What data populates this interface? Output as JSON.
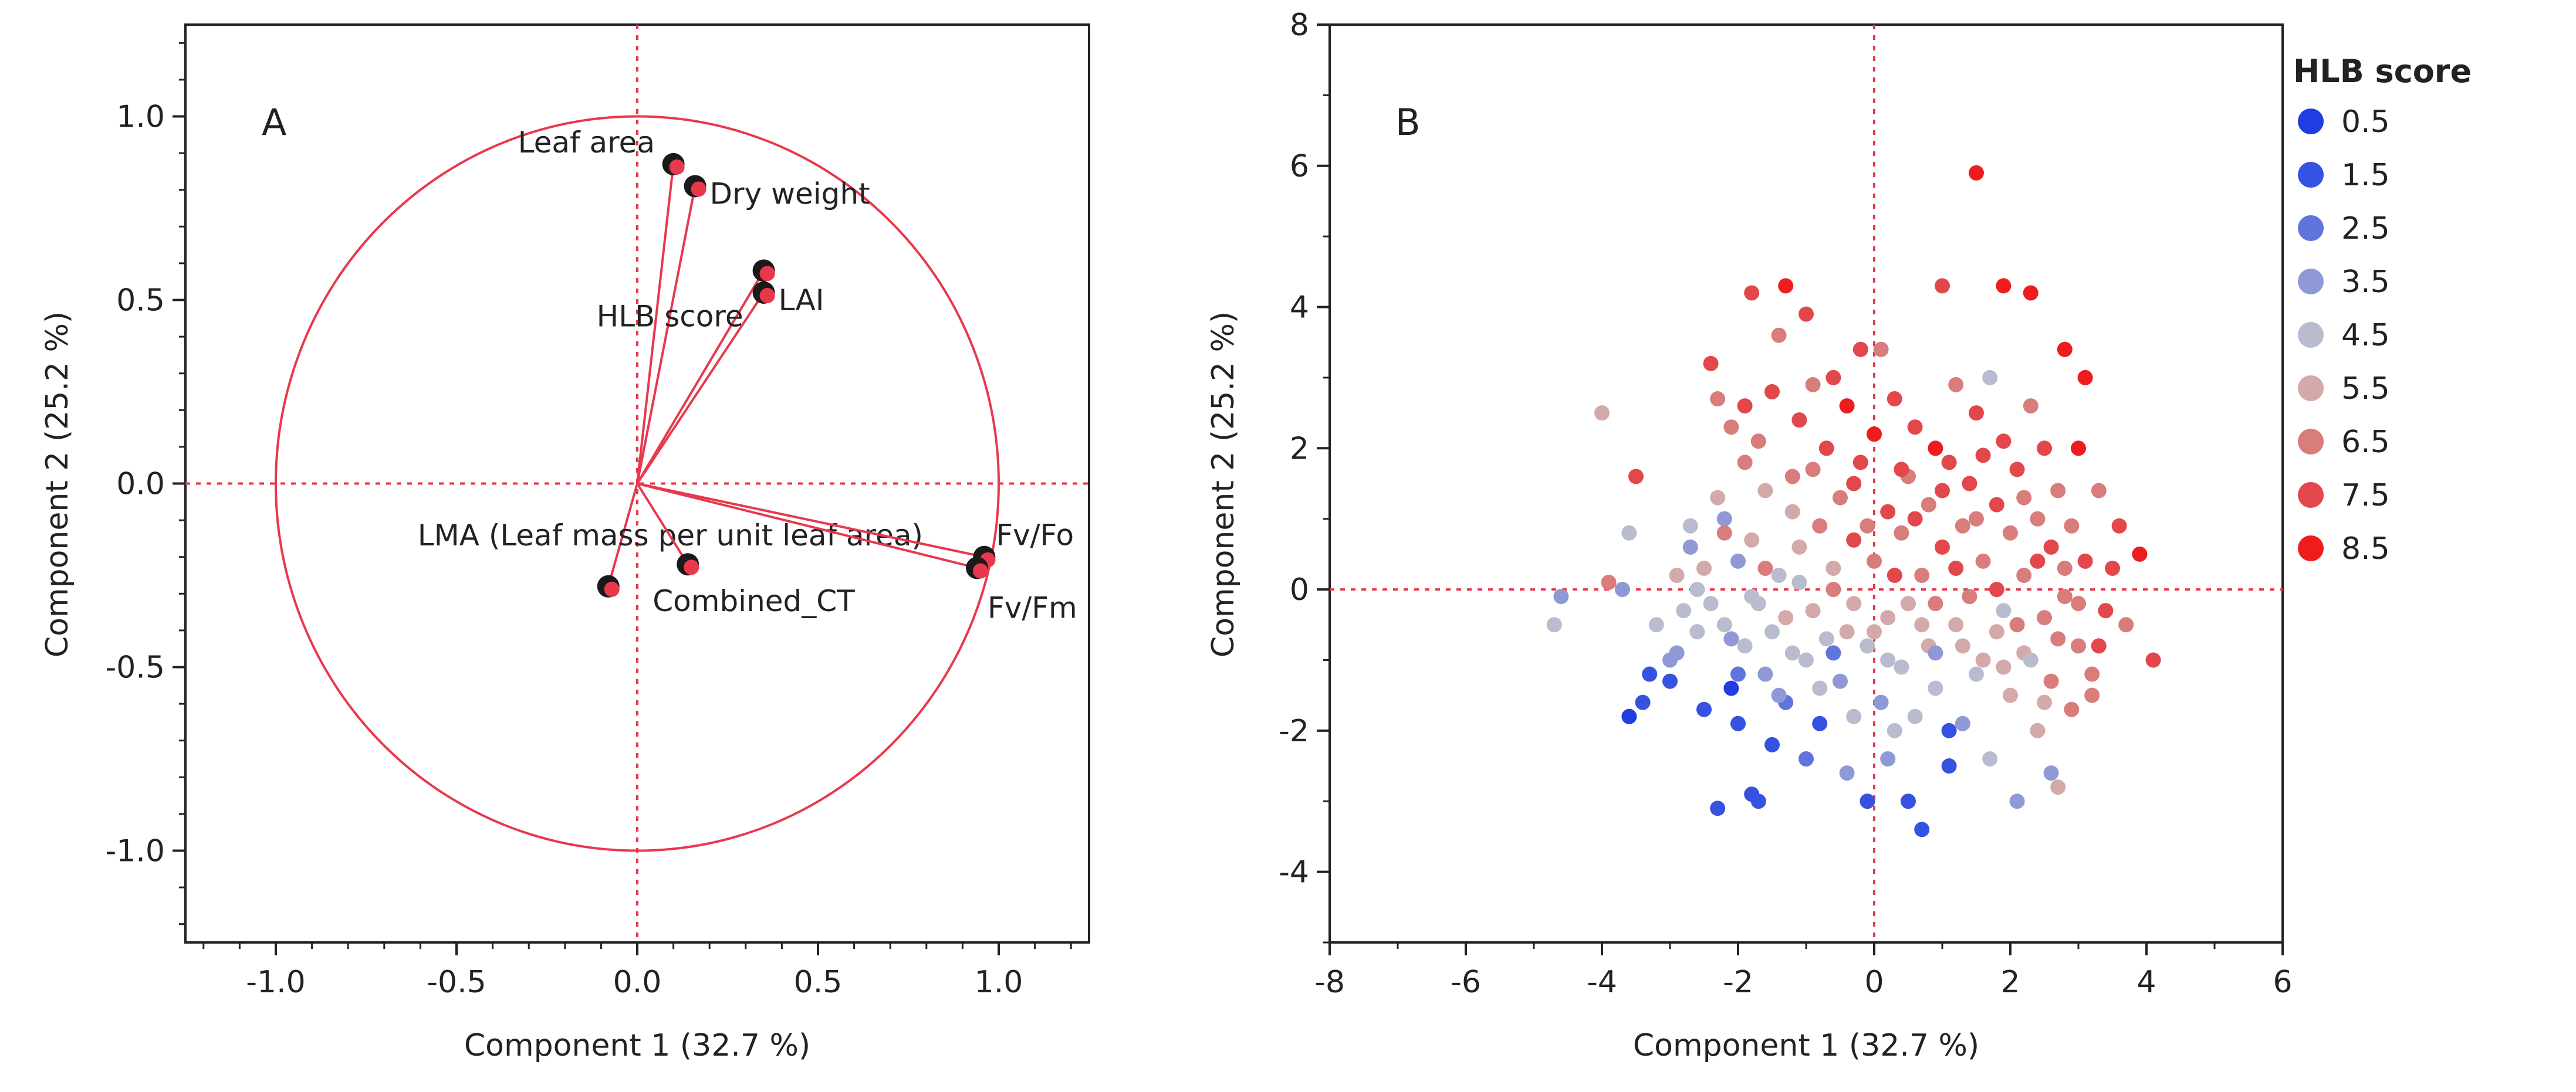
{
  "chart_data": [
    {
      "panel_label": "A",
      "type": "scatter",
      "subtype": "pca-loadings-biplot",
      "xlabel": "Component 1  (32.7 %)",
      "ylabel": "Component 2  (25.2 %)",
      "xlim": [
        -1.25,
        1.25
      ],
      "ylim": [
        -1.25,
        1.25
      ],
      "xticks": [
        -1.0,
        -0.5,
        0.0,
        0.5,
        1.0
      ],
      "xtick_labels": [
        "-1.0",
        "-0.5",
        "0.0",
        "0.5",
        "1.0"
      ],
      "yticks": [
        -1.0,
        -0.5,
        0.0,
        0.5,
        1.0
      ],
      "ytick_labels": [
        "-1.0",
        "-0.5",
        "0.0",
        "0.5",
        "1.0"
      ],
      "unit_circle_radius": 1.0,
      "loadings": [
        {
          "name": "Leaf area",
          "x": 0.1,
          "y": 0.87
        },
        {
          "name": "Dry weight",
          "x": 0.16,
          "y": 0.81
        },
        {
          "name": "HLB score",
          "x": 0.35,
          "y": 0.58
        },
        {
          "name": "LAI",
          "x": 0.35,
          "y": 0.52
        },
        {
          "name": "LMA (Leaf mass per unit leaf area)",
          "x": -0.08,
          "y": -0.28
        },
        {
          "name": "Combined_CT",
          "x": 0.14,
          "y": -0.22
        },
        {
          "name": "Fv/Fo",
          "x": 0.96,
          "y": -0.2
        },
        {
          "name": "Fv/Fm",
          "x": 0.94,
          "y": -0.23
        }
      ]
    },
    {
      "panel_label": "B",
      "type": "scatter",
      "subtype": "pca-scores",
      "xlabel": "Component 1  (32.7 %)",
      "ylabel": "Component 2  (25.2 %)",
      "xlim": [
        -8,
        6
      ],
      "ylim": [
        -5,
        8
      ],
      "xticks": [
        -8,
        -6,
        -4,
        -2,
        0,
        2,
        4,
        6
      ],
      "xtick_labels": [
        "-8",
        "-6",
        "-4",
        "-2",
        "0",
        "2",
        "4",
        "6"
      ],
      "yticks": [
        -4,
        -2,
        0,
        2,
        4,
        6,
        8
      ],
      "ytick_labels": [
        "-4",
        "-2",
        "0",
        "2",
        "4",
        "6",
        "8"
      ],
      "legend_title": "HLB score",
      "legend_position": "right",
      "legend": [
        {
          "label": "0.5",
          "value": 0.5,
          "color": "#1f3de0"
        },
        {
          "label": "1.5",
          "value": 1.5,
          "color": "#3552e0"
        },
        {
          "label": "2.5",
          "value": 2.5,
          "color": "#5f74dc"
        },
        {
          "label": "3.5",
          "value": 3.5,
          "color": "#8f99d6"
        },
        {
          "label": "4.5",
          "value": 4.5,
          "color": "#b9bccf"
        },
        {
          "label": "5.5",
          "value": 5.5,
          "color": "#d4a9a9"
        },
        {
          "label": "6.5",
          "value": 6.5,
          "color": "#d97c7c"
        },
        {
          "label": "7.5",
          "value": 7.5,
          "color": "#e2484b"
        },
        {
          "label": "8.5",
          "value": 8.5,
          "color": "#ee1c1c"
        }
      ],
      "points": [
        [
          -4.7,
          -0.5,
          4.5
        ],
        [
          -4.6,
          -0.1,
          3.5
        ],
        [
          -4.0,
          2.5,
          5.5
        ],
        [
          -3.9,
          0.1,
          6.5
        ],
        [
          -3.7,
          0.0,
          3.5
        ],
        [
          -3.6,
          0.8,
          4.5
        ],
        [
          -3.5,
          1.6,
          7.5
        ],
        [
          -3.6,
          -1.8,
          0.5
        ],
        [
          -3.3,
          -1.2,
          1.5
        ],
        [
          -3.4,
          -1.6,
          1.5
        ],
        [
          -3.0,
          -1.3,
          1.5
        ],
        [
          -2.9,
          -0.9,
          3.5
        ],
        [
          -2.8,
          -0.3,
          4.5
        ],
        [
          -2.7,
          0.9,
          4.5
        ],
        [
          -2.7,
          0.6,
          3.5
        ],
        [
          -2.6,
          -0.6,
          4.5
        ],
        [
          -2.5,
          0.3,
          5.5
        ],
        [
          -2.4,
          -0.2,
          4.5
        ],
        [
          -2.4,
          3.2,
          7.5
        ],
        [
          -2.3,
          2.7,
          6.5
        ],
        [
          -2.3,
          1.3,
          5.5
        ],
        [
          -2.2,
          1.0,
          3.5
        ],
        [
          -2.2,
          -0.5,
          4.5
        ],
        [
          -2.1,
          2.3,
          6.5
        ],
        [
          -2.1,
          -1.4,
          0.5
        ],
        [
          -2.0,
          -1.9,
          1.5
        ],
        [
          -2.0,
          0.4,
          3.5
        ],
        [
          -1.9,
          -0.8,
          4.5
        ],
        [
          -1.9,
          1.8,
          6.5
        ],
        [
          -1.8,
          4.2,
          7.5
        ],
        [
          -1.8,
          -2.9,
          1.5
        ],
        [
          -1.8,
          0.7,
          5.5
        ],
        [
          -1.7,
          2.1,
          6.5
        ],
        [
          -1.7,
          -0.2,
          4.5
        ],
        [
          -1.6,
          1.4,
          5.5
        ],
        [
          -1.6,
          -1.2,
          3.5
        ],
        [
          -1.5,
          2.8,
          7.5
        ],
        [
          -1.5,
          -0.6,
          4.5
        ],
        [
          -1.4,
          0.2,
          4.5
        ],
        [
          -1.4,
          3.6,
          6.5
        ],
        [
          -1.3,
          4.3,
          8.5
        ],
        [
          -1.3,
          -1.6,
          2.5
        ],
        [
          -1.2,
          1.1,
          5.5
        ],
        [
          -1.2,
          -0.9,
          4.5
        ],
        [
          -1.1,
          2.4,
          7.5
        ],
        [
          -1.1,
          0.6,
          5.5
        ],
        [
          -1.0,
          -2.4,
          2.5
        ],
        [
          -1.0,
          3.9,
          7.5
        ],
        [
          -0.9,
          1.7,
          6.5
        ],
        [
          -0.9,
          -0.3,
          5.5
        ],
        [
          -0.8,
          0.9,
          6.5
        ],
        [
          -0.8,
          -1.9,
          1.5
        ],
        [
          -0.7,
          2.0,
          7.5
        ],
        [
          -0.7,
          -0.7,
          4.5
        ],
        [
          -0.6,
          3.0,
          7.5
        ],
        [
          -0.6,
          0.3,
          5.5
        ],
        [
          -0.5,
          1.3,
          6.5
        ],
        [
          -0.5,
          -1.3,
          3.5
        ],
        [
          -0.4,
          2.6,
          8.5
        ],
        [
          -0.4,
          -2.6,
          3.5
        ],
        [
          -0.3,
          0.7,
          7.5
        ],
        [
          -0.3,
          -0.2,
          5.5
        ],
        [
          -0.2,
          3.4,
          7.5
        ],
        [
          -0.2,
          1.8,
          7.5
        ],
        [
          -0.1,
          -3.0,
          1.5
        ],
        [
          -0.1,
          -0.8,
          4.5
        ],
        [
          0.0,
          2.2,
          8.5
        ],
        [
          0.0,
          0.4,
          6.5
        ],
        [
          0.1,
          -1.6,
          3.5
        ],
        [
          0.1,
          3.4,
          6.5
        ],
        [
          0.2,
          1.1,
          7.5
        ],
        [
          0.2,
          -0.4,
          5.5
        ],
        [
          0.3,
          2.7,
          7.5
        ],
        [
          0.3,
          -2.0,
          4.5
        ],
        [
          0.4,
          0.8,
          6.5
        ],
        [
          0.4,
          -1.1,
          4.5
        ],
        [
          0.5,
          1.6,
          6.5
        ],
        [
          0.5,
          -0.2,
          5.5
        ],
        [
          0.6,
          2.3,
          7.5
        ],
        [
          0.6,
          -1.8,
          4.5
        ],
        [
          0.7,
          0.2,
          6.5
        ],
        [
          0.7,
          -3.4,
          1.5
        ],
        [
          0.8,
          1.2,
          6.5
        ],
        [
          0.8,
          -0.8,
          5.5
        ],
        [
          0.9,
          2.0,
          8.5
        ],
        [
          0.9,
          -1.4,
          4.5
        ],
        [
          1.0,
          4.3,
          7.5
        ],
        [
          1.0,
          0.6,
          7.5
        ],
        [
          1.1,
          -2.5,
          1.5
        ],
        [
          1.1,
          1.8,
          7.5
        ],
        [
          1.2,
          -0.5,
          5.5
        ],
        [
          1.2,
          2.9,
          6.5
        ],
        [
          1.3,
          0.9,
          6.5
        ],
        [
          1.3,
          -1.9,
          3.5
        ],
        [
          1.4,
          1.5,
          7.5
        ],
        [
          1.4,
          -0.1,
          6.5
        ],
        [
          1.5,
          5.9,
          8.5
        ],
        [
          1.5,
          2.5,
          7.5
        ],
        [
          1.6,
          -1.0,
          5.5
        ],
        [
          1.6,
          0.4,
          6.5
        ],
        [
          1.7,
          3.0,
          4.5
        ],
        [
          1.7,
          -2.4,
          4.5
        ],
        [
          1.8,
          1.2,
          7.5
        ],
        [
          1.8,
          -0.6,
          5.5
        ],
        [
          1.9,
          4.3,
          8.5
        ],
        [
          1.9,
          2.1,
          7.5
        ],
        [
          2.0,
          -1.5,
          5.5
        ],
        [
          2.0,
          0.8,
          6.5
        ],
        [
          2.1,
          1.7,
          7.5
        ],
        [
          2.1,
          -3.0,
          3.5
        ],
        [
          2.2,
          0.2,
          6.5
        ],
        [
          2.2,
          -0.9,
          5.5
        ],
        [
          2.3,
          4.2,
          8.5
        ],
        [
          2.3,
          2.6,
          6.5
        ],
        [
          2.4,
          -2.0,
          5.5
        ],
        [
          2.4,
          1.0,
          6.5
        ],
        [
          2.5,
          -0.4,
          6.5
        ],
        [
          2.5,
          2.0,
          7.5
        ],
        [
          2.6,
          -1.3,
          6.5
        ],
        [
          2.6,
          0.6,
          7.5
        ],
        [
          2.7,
          1.4,
          6.5
        ],
        [
          2.7,
          -2.8,
          5.5
        ],
        [
          2.8,
          -0.1,
          6.5
        ],
        [
          2.8,
          3.4,
          8.5
        ],
        [
          2.9,
          -1.7,
          6.5
        ],
        [
          2.9,
          0.9,
          6.5
        ],
        [
          3.0,
          2.0,
          8.5
        ],
        [
          3.0,
          -0.8,
          6.5
        ],
        [
          3.1,
          3.0,
          8.5
        ],
        [
          3.1,
          0.4,
          7.5
        ],
        [
          3.2,
          -1.2,
          6.5
        ],
        [
          3.3,
          1.4,
          6.5
        ],
        [
          3.4,
          -0.3,
          7.5
        ],
        [
          3.5,
          0.3,
          7.5
        ],
        [
          3.6,
          0.9,
          7.5
        ],
        [
          3.7,
          -0.5,
          6.5
        ],
        [
          3.9,
          0.5,
          8.5
        ],
        [
          4.1,
          -1.0,
          7.5
        ],
        [
          -3.2,
          -0.5,
          4.5
        ],
        [
          -2.9,
          0.2,
          5.5
        ],
        [
          -2.5,
          -1.7,
          1.5
        ],
        [
          -2.3,
          -3.1,
          1.5
        ],
        [
          -2.0,
          -1.2,
          2.5
        ],
        [
          -1.7,
          -3.0,
          1.5
        ],
        [
          -1.5,
          -2.2,
          1.5
        ],
        [
          -1.3,
          -0.4,
          5.5
        ],
        [
          -1.0,
          -1.0,
          4.5
        ],
        [
          -0.6,
          -0.9,
          2.5
        ],
        [
          -0.3,
          -1.8,
          4.5
        ],
        [
          0.2,
          -2.4,
          3.5
        ],
        [
          0.5,
          -3.0,
          1.5
        ],
        [
          0.9,
          -0.9,
          3.5
        ],
        [
          1.1,
          -2.0,
          1.5
        ],
        [
          1.5,
          -1.2,
          4.5
        ],
        [
          1.9,
          -0.3,
          4.5
        ],
        [
          2.3,
          -1.0,
          4.5
        ],
        [
          2.6,
          -2.6,
          3.5
        ],
        [
          -2.2,
          0.8,
          6.5
        ],
        [
          -1.9,
          2.6,
          7.5
        ],
        [
          -1.6,
          0.3,
          6.5
        ],
        [
          -1.2,
          1.6,
          6.5
        ],
        [
          -0.9,
          2.9,
          6.5
        ],
        [
          -0.6,
          0.0,
          6.5
        ],
        [
          -0.3,
          1.5,
          7.5
        ],
        [
          0.0,
          -0.6,
          5.5
        ],
        [
          0.3,
          0.2,
          7.5
        ],
        [
          0.6,
          1.0,
          7.5
        ],
        [
          0.9,
          -0.2,
          6.5
        ],
        [
          1.2,
          0.3,
          7.5
        ],
        [
          1.5,
          1.0,
          6.5
        ],
        [
          1.8,
          0.0,
          7.5
        ],
        [
          2.1,
          -0.5,
          6.5
        ],
        [
          2.4,
          0.4,
          7.5
        ],
        [
          2.7,
          -0.7,
          6.5
        ],
        [
          3.0,
          -0.2,
          6.5
        ],
        [
          3.3,
          -0.8,
          7.5
        ],
        [
          -3.0,
          -1.0,
          3.5
        ],
        [
          -2.6,
          0.0,
          4.5
        ],
        [
          -2.1,
          -0.7,
          3.5
        ],
        [
          -1.8,
          -0.1,
          4.5
        ],
        [
          -1.4,
          -1.5,
          3.5
        ],
        [
          -1.1,
          0.1,
          4.5
        ],
        [
          -0.8,
          -1.4,
          4.5
        ],
        [
          -0.4,
          -0.6,
          5.5
        ],
        [
          -0.1,
          0.9,
          6.5
        ],
        [
          0.2,
          -1.0,
          4.5
        ],
        [
          0.4,
          1.7,
          7.5
        ],
        [
          0.7,
          -0.5,
          5.5
        ],
        [
          1.0,
          1.4,
          7.5
        ],
        [
          1.3,
          -0.8,
          5.5
        ],
        [
          1.6,
          1.9,
          7.5
        ],
        [
          1.9,
          -1.1,
          5.5
        ],
        [
          2.2,
          1.3,
          6.5
        ],
        [
          2.5,
          -1.6,
          5.5
        ],
        [
          2.8,
          0.3,
          6.5
        ],
        [
          3.2,
          -1.5,
          6.5
        ]
      ]
    }
  ]
}
